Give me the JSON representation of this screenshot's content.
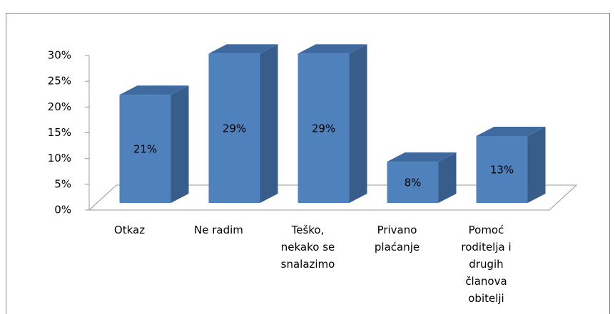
{
  "chart_data": {
    "type": "bar3d",
    "categories": [
      "Otkaz",
      "Ne radim",
      "Teško, nekako se snalazimo",
      "Privano plaćanje",
      "Pomoć roditelja i drugih članova obitelji"
    ],
    "values": [
      21,
      29,
      29,
      8,
      13
    ],
    "value_labels": [
      "21%",
      "29%",
      "29%",
      "8%",
      "13%"
    ],
    "color": "#4f81bd",
    "ylim": [
      0,
      30
    ],
    "yticks": [
      {
        "value": 0,
        "label": "0%"
      },
      {
        "value": 5,
        "label": "5%"
      },
      {
        "value": 10,
        "label": "10%"
      },
      {
        "value": 15,
        "label": "15%"
      },
      {
        "value": 20,
        "label": "20%"
      },
      {
        "value": 25,
        "label": "25%"
      },
      {
        "value": 30,
        "label": "30%"
      }
    ]
  }
}
